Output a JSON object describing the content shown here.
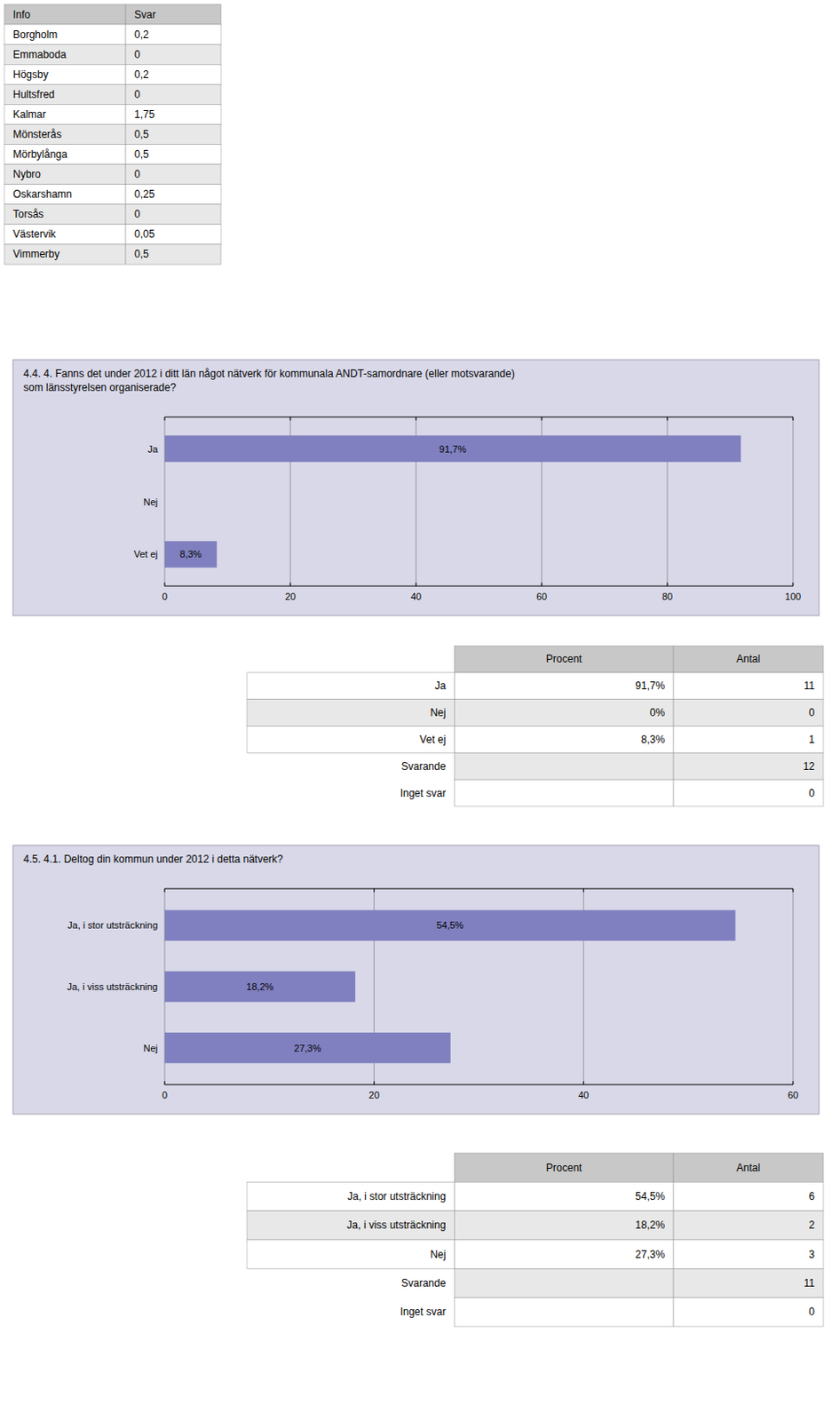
{
  "chart_data": [
    {
      "type": "bar",
      "orientation": "horizontal",
      "title": "4.4. 4. Fanns det under 2012 i ditt län något nätverk för kommunala ANDT-samordnare (eller motsvarande)\nsom länsstyrelsen organiserade?",
      "categories": [
        "Ja",
        "Nej",
        "Vet ej"
      ],
      "values": [
        91.7,
        0,
        8.3
      ],
      "value_labels": [
        "91,7%",
        null,
        "8,3%"
      ],
      "data_labels": true,
      "color": "#8080c0",
      "xlim": [
        0,
        100
      ],
      "xticks": [
        0,
        20,
        40,
        60,
        80,
        100
      ],
      "grid": true
    },
    {
      "type": "bar",
      "orientation": "horizontal",
      "title": "4.5. 4.1. Deltog din kommun under 2012 i detta nätverk?",
      "categories": [
        "Ja, i stor utsträckning",
        "Ja, i viss utsträckning",
        "Nej"
      ],
      "values": [
        54.5,
        18.2,
        27.3
      ],
      "value_labels": [
        "54,5%",
        "18,2%",
        "27,3%"
      ],
      "data_labels": true,
      "color": "#8080c0",
      "xlim": [
        0,
        60
      ],
      "xticks": [
        0,
        20,
        40,
        60
      ],
      "grid": true
    }
  ],
  "tables": [
    {
      "headers": [
        "Info",
        "Svar"
      ],
      "rows": [
        [
          "Borgholm",
          "0,2"
        ],
        [
          "Emmaboda",
          "0"
        ],
        [
          "Högsby",
          "0,2"
        ],
        [
          "Hultsfred",
          "0"
        ],
        [
          "Kalmar",
          "1,75"
        ],
        [
          "Mönsterås",
          "0,5"
        ],
        [
          "Mörbylånga",
          "0,5"
        ],
        [
          "Nybro",
          "0"
        ],
        [
          "Oskarshamn",
          "0,25"
        ],
        [
          "Torsås",
          "0"
        ],
        [
          "Västervik",
          "0,05"
        ],
        [
          "Vimmerby",
          "0,5"
        ]
      ]
    },
    {
      "headers": [
        null,
        "Procent",
        "Antal"
      ],
      "rows": [
        [
          "Ja",
          "91,7%",
          "11"
        ],
        [
          "Nej",
          "0%",
          "0"
        ],
        [
          "Vet ej",
          "8,3%",
          "1"
        ],
        [
          "Svarande",
          null,
          "12"
        ],
        [
          "Inget svar",
          null,
          "0"
        ]
      ]
    },
    {
      "headers": [
        null,
        "Procent",
        "Antal"
      ],
      "rows": [
        [
          "Ja, i stor utsträckning",
          "54,5%",
          "6"
        ],
        [
          "Ja, i viss utsträckning",
          "18,2%",
          "2"
        ],
        [
          "Nej",
          "27,3%",
          "3"
        ],
        [
          "Svarande",
          null,
          "11"
        ],
        [
          "Inget svar",
          null,
          "0"
        ]
      ]
    }
  ]
}
